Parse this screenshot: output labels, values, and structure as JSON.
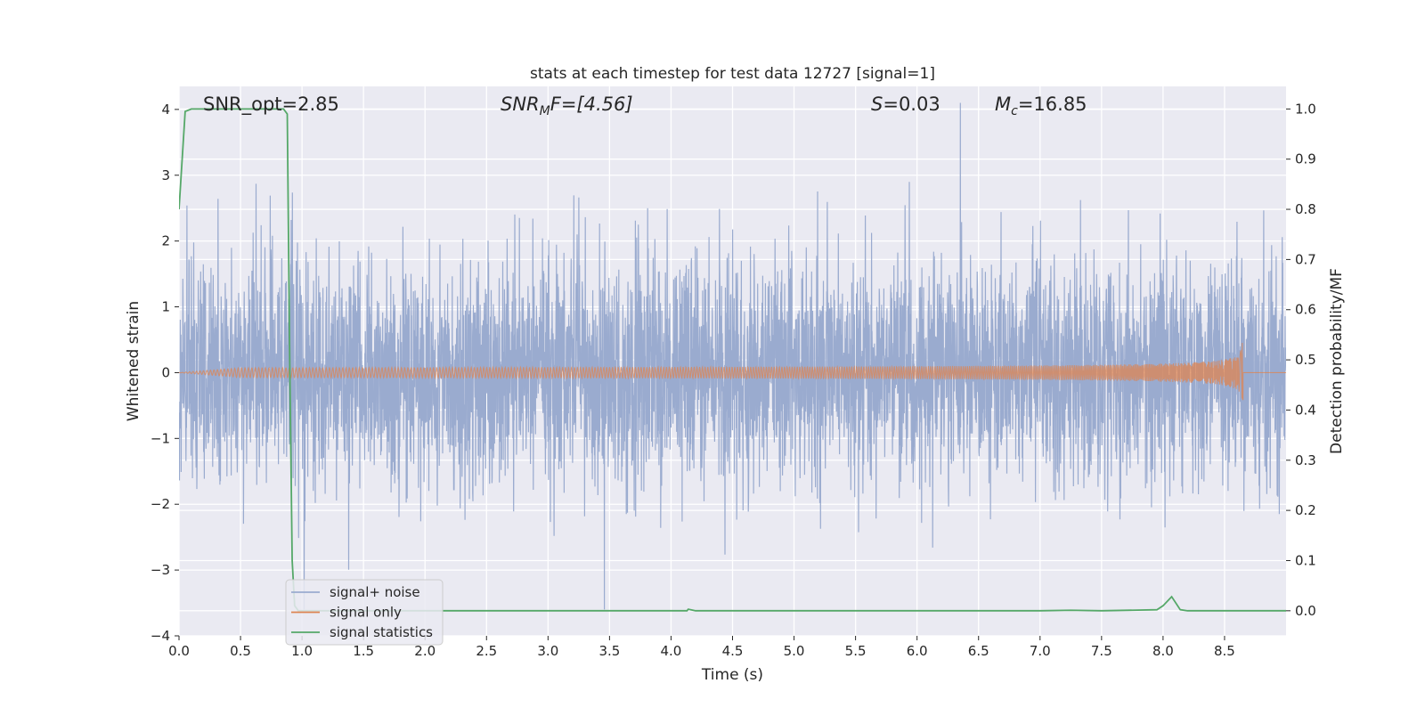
{
  "chart_data": {
    "type": "line",
    "title": "stats at each timestep for test data 12727 [signal=1]",
    "xlabel": "Time (s)",
    "ylabel_left": "Whitened strain",
    "ylabel_right": "Detection probability/MF",
    "xlim": [
      0,
      9
    ],
    "ylim_left": [
      -4,
      4.35
    ],
    "ylim_right": [
      -0.05,
      1.045
    ],
    "xticks": [
      0.0,
      0.5,
      1.0,
      1.5,
      2.0,
      2.5,
      3.0,
      3.5,
      4.0,
      4.5,
      5.0,
      5.5,
      6.0,
      6.5,
      7.0,
      7.5,
      8.0,
      8.5
    ],
    "xtick_labels": [
      "0.0",
      "0.5",
      "1.0",
      "1.5",
      "2.0",
      "2.5",
      "3.0",
      "3.5",
      "4.0",
      "4.5",
      "5.0",
      "5.5",
      "6.0",
      "6.5",
      "7.0",
      "7.5",
      "8.0",
      "8.5"
    ],
    "yticks_left": [
      -4,
      -3,
      -2,
      -1,
      0,
      1,
      2,
      3,
      4
    ],
    "ytick_labels_left": [
      "−4",
      "−3",
      "−2",
      "−1",
      "0",
      "1",
      "2",
      "3",
      "4"
    ],
    "yticks_right": [
      0.0,
      0.1,
      0.2,
      0.3,
      0.4,
      0.5,
      0.6,
      0.7,
      0.8,
      0.9,
      1.0
    ],
    "ytick_labels_right": [
      "0.0",
      "0.1",
      "0.2",
      "0.3",
      "0.4",
      "0.5",
      "0.6",
      "0.7",
      "0.8",
      "0.9",
      "1.0"
    ],
    "grid": true,
    "legend_position": "bottom-left",
    "annotations": [
      {
        "text": "SNR_opt=2.85"
      },
      {
        "text": "SNR_MF=[4.56]",
        "main": "SNR",
        "sub": "M",
        "tail": "F=[4.56]"
      },
      {
        "text": "S=0.03",
        "main": "S",
        "tail": "=0.03"
      },
      {
        "text": "M_c=16.85",
        "main": "M",
        "sub": "c",
        "tail": "=16.85"
      }
    ],
    "series": [
      {
        "name": "signal+ noise",
        "color": "#9aabcf",
        "axis": "left",
        "note": "whitened noisy strain, amplitude mostly within ±1.8 with spikes to about ±3.5"
      },
      {
        "name": "signal only",
        "color": "#dd8452",
        "axis": "left",
        "chirp_end_time": 8.65,
        "chirp_peak_amplitude": 0.47
      },
      {
        "name": "signal statistics",
        "color": "#55a868",
        "axis": "right",
        "x": [
          0.0,
          0.05,
          0.1,
          0.15,
          0.2,
          0.85,
          0.88,
          0.9,
          0.92,
          0.94,
          0.97,
          1.0,
          1.5,
          2.0,
          3.0,
          4.0,
          4.13,
          4.14,
          4.2,
          5.0,
          6.0,
          7.0,
          7.25,
          7.5,
          7.95,
          8.0,
          8.07,
          8.14,
          8.2,
          9.0
        ],
        "y": [
          0.8,
          0.995,
          1.0,
          1.0,
          1.0,
          1.0,
          0.99,
          0.5,
          0.1,
          0.01,
          0.0,
          0.0,
          0.0,
          0.0,
          0.0,
          0.0,
          0.0,
          0.003,
          0.0,
          0.0,
          0.0,
          0.0,
          0.001,
          0.0,
          0.002,
          0.01,
          0.028,
          0.002,
          0.0,
          0.0
        ]
      }
    ]
  }
}
